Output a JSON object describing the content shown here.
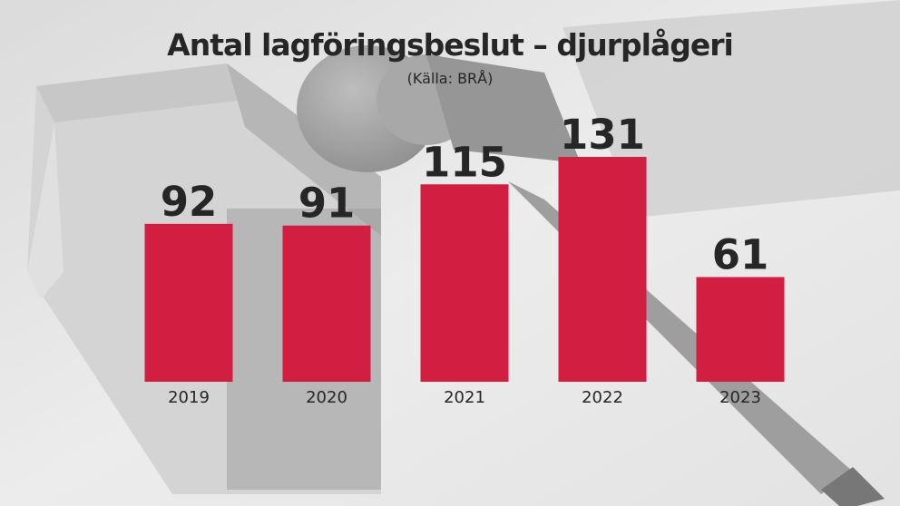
{
  "chart_data": {
    "type": "bar",
    "title": "Antal lagföringsbeslut – djurplågeri",
    "subtitle": "(Källa: BRÅ)",
    "categories": [
      "2019",
      "2020",
      "2021",
      "2022",
      "2023"
    ],
    "values": [
      92,
      91,
      115,
      131,
      61
    ],
    "data_labels": [
      "92",
      "91",
      "115",
      "131",
      "61"
    ],
    "ylim": [
      0,
      131
    ],
    "grid": false,
    "legend": "none",
    "colors": {
      "bar": "#d21e41",
      "text": "#262626"
    }
  }
}
